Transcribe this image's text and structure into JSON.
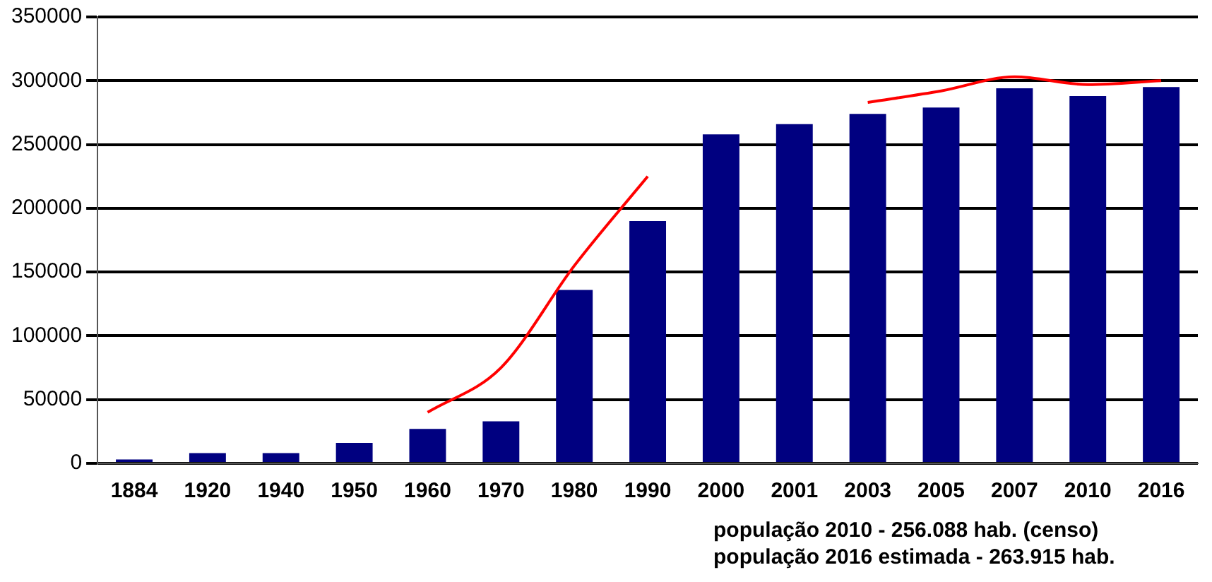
{
  "chart_data": {
    "type": "bar",
    "categories": [
      "1884",
      "1920",
      "1940",
      "1950",
      "1960",
      "1970",
      "1980",
      "1990",
      "2000",
      "2001",
      "2003",
      "2005",
      "2007",
      "2010",
      "2016"
    ],
    "series": [
      {
        "color": "#000080",
        "values": [
          3000,
          8000,
          8000,
          16000,
          27000,
          33000,
          136000,
          190000,
          258000,
          266000,
          274000,
          279000,
          294000,
          288000,
          295000
        ]
      },
      {
        "type": "line",
        "color": "#ff0000",
        "values": [
          null,
          null,
          null,
          null,
          40000,
          75000,
          155000,
          225000,
          null,
          null,
          283000,
          292000,
          303000,
          297000,
          300000
        ]
      }
    ],
    "ylim": [
      0,
      350000
    ],
    "yticks": [
      0,
      50000,
      100000,
      150000,
      200000,
      250000,
      300000,
      350000
    ],
    "grid": "y",
    "marker": "none",
    "annotations": [
      "população 2010 - 256.088 hab. (censo)",
      "população 2016 estimada - 263.915 hab."
    ]
  }
}
